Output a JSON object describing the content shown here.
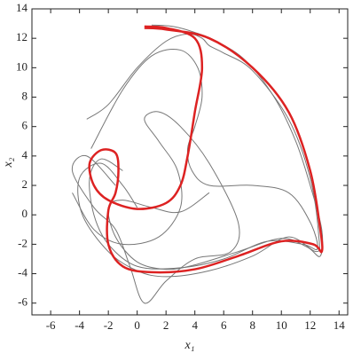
{
  "chart_data": {
    "type": "line",
    "x_label": "x₁",
    "y_label": "x₂",
    "xlim": [
      -7.3,
      14.6
    ],
    "ylim": [
      -6.8,
      14
    ],
    "xticks": [
      -6,
      -4,
      -2,
      0,
      2,
      4,
      6,
      8,
      10,
      12,
      14
    ],
    "yticks": [
      -6,
      -4,
      -2,
      0,
      2,
      4,
      6,
      8,
      10,
      12,
      14
    ],
    "series": [
      {
        "color": "#777777",
        "line_width": 1,
        "x": [
          -3.5,
          -2,
          0,
          2,
          3.5,
          4.5,
          5,
          6,
          8,
          10.5,
          12,
          12.6,
          12.4,
          10.5,
          8,
          5,
          2,
          0,
          -2,
          -3.8,
          -4,
          -2.5,
          -1,
          0
        ],
        "y": [
          6.5,
          7.5,
          10,
          11.8,
          12.3,
          12,
          11.5,
          11,
          9.8,
          6.5,
          2.5,
          -1.5,
          -2.5,
          -1.5,
          -2.8,
          -3.8,
          -4.2,
          -3.8,
          -2.5,
          0,
          2.5,
          3.5,
          2,
          0.5
        ]
      },
      {
        "color": "#777777",
        "line_width": 1,
        "x": [
          -3.2,
          -1,
          1,
          3,
          4.2,
          4.5,
          4,
          3.5,
          3.8,
          5,
          8,
          10.5,
          12,
          12.5,
          11.5,
          9,
          6,
          3,
          0,
          -2,
          -3,
          -3.3,
          -2.5,
          -1
        ],
        "y": [
          4.5,
          8.5,
          10.8,
          11.2,
          10,
          8,
          6,
          4.5,
          3,
          2,
          2,
          1.5,
          -0.5,
          -2.3,
          -2,
          -1.8,
          -3,
          -3.6,
          -3.5,
          -2,
          0,
          2.5,
          3.8,
          3
        ]
      },
      {
        "color": "#777777",
        "line_width": 1,
        "x": [
          -4.5,
          -3,
          -1,
          1.5,
          3,
          2.8,
          1.5,
          0.5,
          1.5,
          3,
          5,
          7,
          6.5,
          4,
          2,
          0.5,
          -0.5,
          -1.5,
          -3,
          -4.5,
          -3.5,
          -1.5
        ],
        "y": [
          1.5,
          -1,
          -2,
          -1.5,
          0.5,
          3,
          5,
          6.5,
          7,
          6,
          3.5,
          -0.5,
          -2.5,
          -3,
          -4.5,
          -6,
          -3.5,
          -1,
          0.5,
          3,
          4,
          2
        ]
      },
      {
        "color": "#777777",
        "line_width": 1,
        "x": [
          1,
          2.5,
          4,
          5.5,
          7.5,
          9.5,
          11,
          12,
          12.8,
          12.7,
          11.8,
          10,
          7,
          4,
          2,
          0,
          -1.5,
          -2,
          -1,
          1,
          3,
          5
        ],
        "y": [
          12.9,
          12.8,
          12.4,
          11.8,
          10.5,
          8,
          5,
          2,
          -1,
          -2.8,
          -2.2,
          -1.6,
          -2.5,
          -3.4,
          -3.7,
          -3.2,
          -1.5,
          0.5,
          1,
          0.5,
          0.2,
          1.5
        ]
      },
      {
        "color": "#dd2222",
        "line_width": 2.5,
        "x": [
          0.5,
          2,
          5,
          8,
          10.5,
          12,
          12.7,
          12.8,
          12.2,
          10,
          7,
          4,
          1,
          -1,
          -2,
          -2,
          -1.5,
          -1.3,
          -1.5,
          -2.5,
          -3.3,
          -3,
          -2,
          0,
          2,
          3,
          3.5,
          4,
          4.5,
          4,
          2,
          0.5
        ],
        "y": [
          12.7,
          12.6,
          12,
          10,
          7,
          3,
          -1,
          -2.5,
          -2,
          -1.8,
          -2.8,
          -3.7,
          -3.9,
          -3.5,
          -2,
          0.3,
          1.5,
          3,
          4.2,
          4.4,
          3.5,
          2,
          1,
          0.4,
          0.8,
          2,
          4,
          7,
          10,
          12,
          12.7,
          12.8
        ]
      }
    ]
  }
}
